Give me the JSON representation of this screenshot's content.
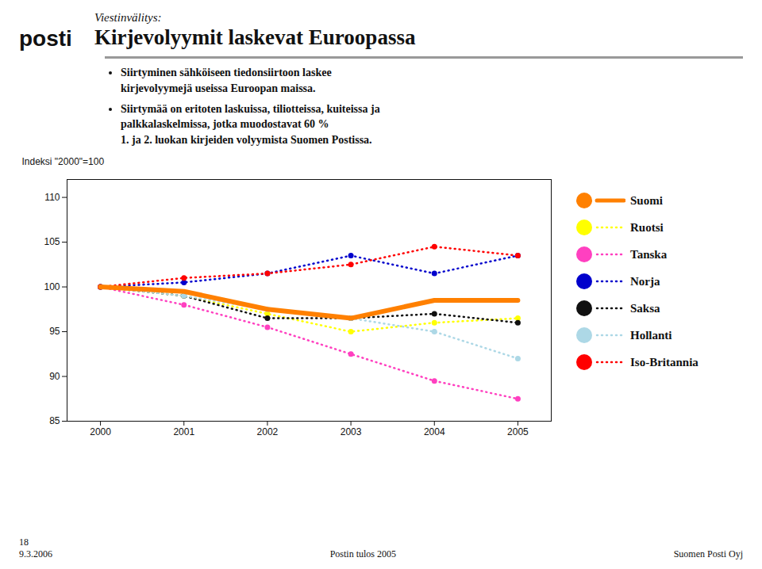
{
  "chart_data": {
    "type": "line",
    "title": "Kirjevolyymit laskevat Euroopassa",
    "subtitle": "Viestinvälitys:",
    "annotations": [
      "posti",
      "Siirtyminen sähköiseen tiedonsiirtoon laskee\nkirjevolyymejä useissa Euroopan maissa.",
      "Siirtymää on eritoten laskuissa, tiliotteissa, kuiteissa ja\npalkkalaskelmissa, jotka muodostavat 60 %\n1. ja 2. luokan kirjeiden volyymista Suomen Postissa.",
      "18\n9.3.2006",
      "Postin tulos 2005",
      "Suomen Posti Oyj"
    ],
    "ylabel": "Indeksi \"2000\"=100",
    "x": [
      2000,
      2001,
      2002,
      2003,
      2004,
      2005
    ],
    "xlim": [
      1999.6,
      2005.4
    ],
    "xticks": [
      2000,
      2001,
      2002,
      2003,
      2004,
      2005
    ],
    "ylim": [
      85,
      112
    ],
    "yticks": [
      85,
      90,
      95,
      100,
      105,
      110
    ],
    "grid": false,
    "legend": "right",
    "series": [
      {
        "name": "Suomi",
        "color": "#FF8000",
        "values": [
          100,
          99.5,
          97.5,
          96.5,
          98.5,
          98.5
        ],
        "line_style": "solid",
        "marker": "none"
      },
      {
        "name": "Ruotsi",
        "color": "#FFFF00",
        "values": [
          100,
          99.0,
          97.0,
          95.0,
          96.0,
          96.5
        ],
        "line_style": "dotted",
        "marker": "circle"
      },
      {
        "name": "Tanska",
        "color": "#FF40C0",
        "values": [
          100,
          98.0,
          95.5,
          92.5,
          89.5,
          87.5
        ],
        "line_style": "dotted",
        "marker": "circle"
      },
      {
        "name": "Norja",
        "color": "#0000CC",
        "values": [
          100,
          100.5,
          101.5,
          103.5,
          101.5,
          103.5
        ],
        "line_style": "dotted",
        "marker": "circle"
      },
      {
        "name": "Saksa",
        "color": "#101010",
        "values": [
          100,
          99.0,
          96.5,
          96.5,
          97.0,
          96.0
        ],
        "line_style": "dotted",
        "marker": "circle"
      },
      {
        "name": "Hollanti",
        "color": "#ADD8E6",
        "values": [
          100,
          99.0,
          97.5,
          96.5,
          95.0,
          92.0
        ],
        "line_style": "dotted",
        "marker": "circle"
      },
      {
        "name": "Iso-Britannia",
        "color": "#FF0000",
        "values": [
          100,
          101.0,
          101.5,
          102.5,
          104.5,
          103.5
        ],
        "line_style": "dotted",
        "marker": "circle"
      }
    ]
  }
}
